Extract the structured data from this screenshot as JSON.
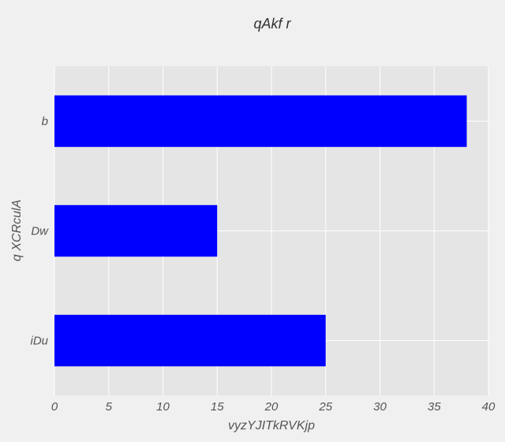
{
  "chart_data": {
    "type": "bar",
    "orientation": "horizontal",
    "title": "qAkf  r",
    "xlabel": "vyzYJITkRVKjp",
    "ylabel": "q  XCRculA",
    "categories": [
      "b",
      "Dw",
      "iDu"
    ],
    "values": [
      38,
      15,
      25
    ],
    "xlim": [
      0,
      40
    ],
    "xticks": [
      "0",
      "5",
      "10",
      "15",
      "20",
      "25",
      "30",
      "35",
      "40"
    ],
    "grid": true,
    "bar_color": "#0000ff",
    "plot_background": "#e5e5e5",
    "figure_background": "#f0f0f0",
    "grid_color": "#ffffff"
  }
}
